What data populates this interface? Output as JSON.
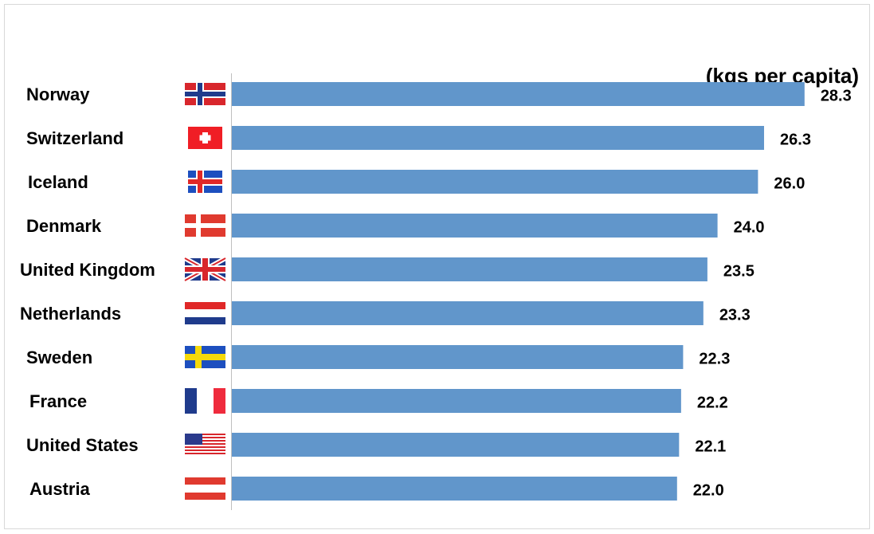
{
  "chart_data": {
    "type": "bar",
    "orientation": "horizontal",
    "title": "(kgs per capita)",
    "categories": [
      "Norway",
      "Switzerland",
      "Iceland",
      "Denmark",
      "United Kingdom",
      "Netherlands",
      "Sweden",
      "France",
      "United States",
      "Austria"
    ],
    "values": [
      28.3,
      26.3,
      26.0,
      24.0,
      23.5,
      23.3,
      22.3,
      22.2,
      22.1,
      22.0
    ],
    "value_labels": [
      "28.3",
      "26.3",
      "26.0",
      "24.0",
      "23.5",
      "23.3",
      "22.3",
      "22.2",
      "22.1",
      "22.0"
    ],
    "color": "#6196cb",
    "xlim": [
      0,
      30
    ]
  }
}
